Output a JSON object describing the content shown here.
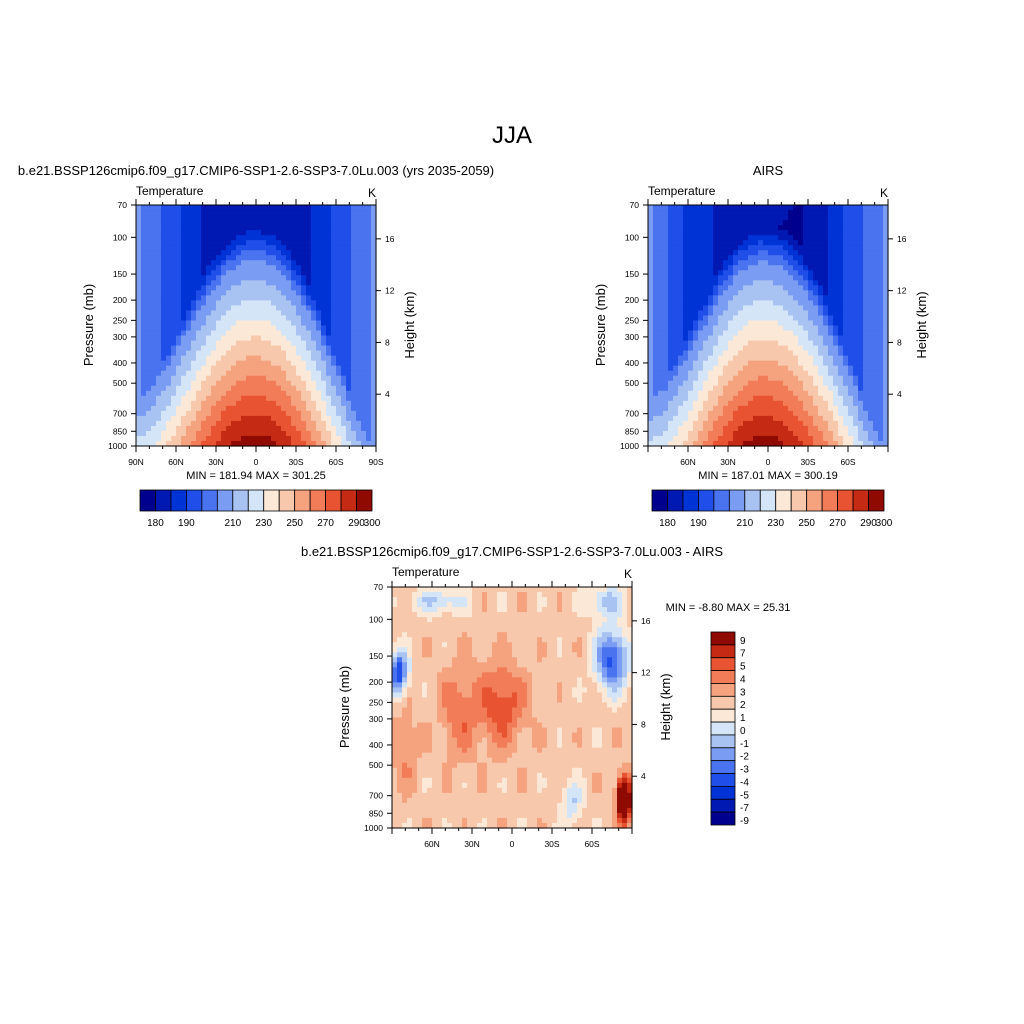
{
  "figure": {
    "season": "JJA"
  },
  "colors": {
    "abs": [
      "#00008f",
      "#0019b3",
      "#0033d6",
      "#1f4fe8",
      "#4a73f0",
      "#7a9cf2",
      "#a8c2f2",
      "#d4e5f7",
      "#fce8d6",
      "#f7c8ab",
      "#f5a27f",
      "#f27c57",
      "#e85431",
      "#c42a14",
      "#8f0a00"
    ],
    "diff": [
      "#00008f",
      "#0019b3",
      "#0033d6",
      "#1f4fe8",
      "#4a73f0",
      "#7a9cf2",
      "#a8c2f2",
      "#d4e5f7",
      "#fce8d6",
      "#f7c8ab",
      "#f5a27f",
      "#f27c57",
      "#e85431",
      "#c42a14",
      "#8f0a00"
    ]
  },
  "chart_data": [
    {
      "type": "heatmap",
      "title": "b.e21.BSSP126cmip6.f09_g17.CMIP6-SSP1-2.6-SSP3-7.0Lu.003 (yrs 2035-2059)",
      "left_string": "Temperature",
      "right_string": "K",
      "ylabel": "Pressure (mb)",
      "y2label": "Height (km)",
      "xlim": [
        90,
        -90
      ],
      "ylim": [
        1000,
        70
      ],
      "yscale": "log",
      "x_ticks": [
        "90N",
        "60N",
        "30N",
        "0",
        "30S",
        "60S",
        "90S"
      ],
      "x_tick_values": [
        90,
        60,
        30,
        0,
        -30,
        -60,
        -90
      ],
      "y_ticks": [
        70,
        100,
        150,
        200,
        250,
        300,
        400,
        500,
        700,
        850,
        1000
      ],
      "y2_ticks": [
        4,
        8,
        12,
        16
      ],
      "min_max": "MIN = 181.94  MAX = 301.25",
      "levels": [
        180,
        185,
        190,
        195,
        200,
        210,
        220,
        230,
        240,
        250,
        260,
        270,
        280,
        290,
        300
      ],
      "colorbar_labels": [
        "180",
        "190",
        "210",
        "230",
        "250",
        "270",
        "290",
        "300"
      ],
      "colorbar_orientation": "horizontal"
    },
    {
      "type": "heatmap",
      "title": "AIRS",
      "left_string": "Temperature",
      "right_string": "K",
      "ylabel": "Pressure (mb)",
      "y2label": "Height (km)",
      "xlim": [
        90,
        -90
      ],
      "ylim": [
        1000,
        70
      ],
      "yscale": "log",
      "x_ticks": [
        "60N",
        "30N",
        "0",
        "30S",
        "60S"
      ],
      "x_tick_values": [
        60,
        30,
        0,
        -30,
        -60
      ],
      "y_ticks": [
        70,
        100,
        150,
        200,
        250,
        300,
        400,
        500,
        700,
        850,
        1000
      ],
      "y2_ticks": [
        4,
        8,
        12,
        16
      ],
      "min_max": "MIN = 187.01  MAX = 300.19",
      "levels": [
        180,
        185,
        190,
        195,
        200,
        210,
        220,
        230,
        240,
        250,
        260,
        270,
        280,
        290,
        300
      ],
      "colorbar_labels": [
        "180",
        "190",
        "210",
        "230",
        "250",
        "270",
        "290",
        "300"
      ],
      "colorbar_orientation": "horizontal"
    },
    {
      "type": "heatmap",
      "title": "b.e21.BSSP126cmip6.f09_g17.CMIP6-SSP1-2.6-SSP3-7.0Lu.003 - AIRS",
      "left_string": "Temperature",
      "right_string": "K",
      "ylabel": "Pressure (mb)",
      "y2label": "Height (km)",
      "xlim": [
        90,
        -90
      ],
      "ylim": [
        1000,
        70
      ],
      "yscale": "log",
      "x_ticks": [
        "60N",
        "30N",
        "0",
        "30S",
        "60S"
      ],
      "x_tick_values": [
        60,
        30,
        0,
        -30,
        -60
      ],
      "y_ticks": [
        70,
        100,
        150,
        200,
        250,
        300,
        400,
        500,
        700,
        850,
        1000
      ],
      "y2_ticks": [
        4,
        8,
        12,
        16
      ],
      "min_max": "MIN =  -8.80  MAX =  25.31",
      "levels": [
        -9,
        -7,
        -5,
        -4,
        -3,
        -2,
        -1,
        0,
        1,
        2,
        3,
        4,
        5,
        7,
        9
      ],
      "colorbar_labels": [
        "9",
        "7",
        "5",
        "4",
        "3",
        "2",
        "1",
        "0",
        "-1",
        "-2",
        "-3",
        "-4",
        "-5",
        "-7",
        "-9"
      ],
      "colorbar_orientation": "vertical"
    }
  ]
}
